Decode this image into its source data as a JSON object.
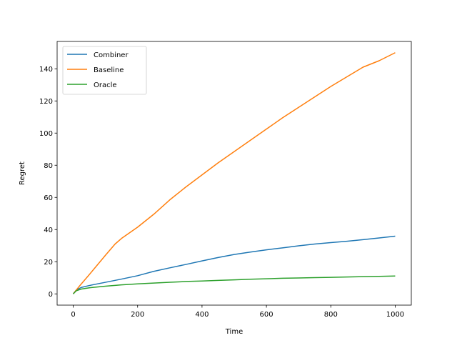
{
  "chart_data": {
    "type": "line",
    "xlabel": "Time",
    "ylabel": "Regret",
    "xlim": [
      -50,
      1050
    ],
    "ylim": [
      -7,
      157
    ],
    "xticks": [
      0,
      200,
      400,
      600,
      800,
      1000
    ],
    "yticks": [
      0,
      20,
      40,
      60,
      80,
      100,
      120,
      140
    ],
    "grid": false,
    "legend_position": "top-left",
    "series": [
      {
        "name": "Combiner",
        "color": "#1f77b4",
        "points": [
          [
            0,
            0
          ],
          [
            10,
            2.5
          ],
          [
            25,
            4
          ],
          [
            50,
            5.2
          ],
          [
            100,
            7.2
          ],
          [
            150,
            9.2
          ],
          [
            200,
            11.3
          ],
          [
            250,
            14
          ],
          [
            300,
            16.2
          ],
          [
            350,
            18.3
          ],
          [
            400,
            20.5
          ],
          [
            450,
            22.6
          ],
          [
            500,
            24.5
          ],
          [
            550,
            26
          ],
          [
            600,
            27.4
          ],
          [
            650,
            28.6
          ],
          [
            700,
            29.9
          ],
          [
            750,
            31
          ],
          [
            800,
            31.9
          ],
          [
            850,
            32.7
          ],
          [
            900,
            33.7
          ],
          [
            950,
            34.8
          ],
          [
            1000,
            35.9
          ]
        ]
      },
      {
        "name": "Baseline",
        "color": "#ff7f0e",
        "points": [
          [
            0,
            0
          ],
          [
            20,
            5
          ],
          [
            50,
            12
          ],
          [
            100,
            24
          ],
          [
            130,
            31
          ],
          [
            150,
            34.5
          ],
          [
            200,
            41.5
          ],
          [
            250,
            49.5
          ],
          [
            300,
            58.5
          ],
          [
            350,
            66.5
          ],
          [
            400,
            74
          ],
          [
            450,
            81.5
          ],
          [
            500,
            88.5
          ],
          [
            550,
            95.5
          ],
          [
            600,
            102.5
          ],
          [
            650,
            109.5
          ],
          [
            700,
            116
          ],
          [
            750,
            122.5
          ],
          [
            800,
            129
          ],
          [
            850,
            135
          ],
          [
            900,
            141
          ],
          [
            950,
            145
          ],
          [
            1000,
            150
          ]
        ]
      },
      {
        "name": "Oracle",
        "color": "#2ca02c",
        "points": [
          [
            0,
            0
          ],
          [
            10,
            2
          ],
          [
            25,
            3
          ],
          [
            50,
            3.8
          ],
          [
            100,
            4.8
          ],
          [
            150,
            5.6
          ],
          [
            200,
            6.2
          ],
          [
            250,
            6.7
          ],
          [
            300,
            7.2
          ],
          [
            350,
            7.7
          ],
          [
            400,
            8
          ],
          [
            450,
            8.4
          ],
          [
            500,
            8.7
          ],
          [
            550,
            9.1
          ],
          [
            600,
            9.4
          ],
          [
            650,
            9.7
          ],
          [
            700,
            9.9
          ],
          [
            750,
            10.1
          ],
          [
            800,
            10.3
          ],
          [
            850,
            10.5
          ],
          [
            900,
            10.7
          ],
          [
            950,
            10.9
          ],
          [
            1000,
            11.1
          ]
        ]
      }
    ]
  }
}
